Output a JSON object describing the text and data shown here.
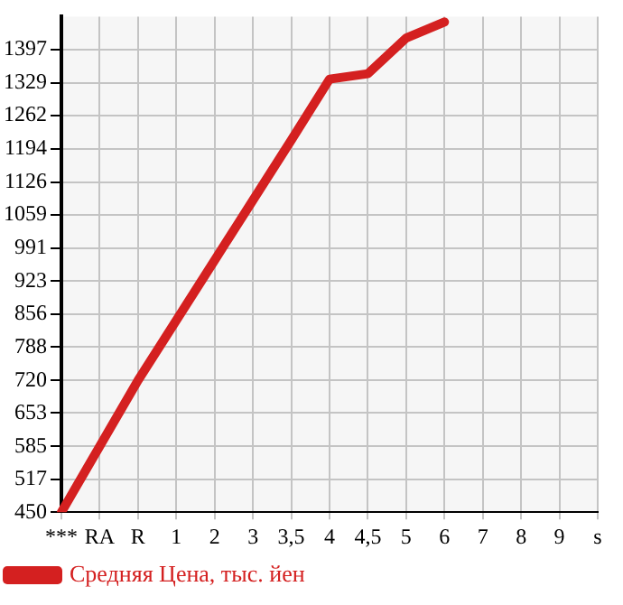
{
  "chart_data": {
    "type": "line",
    "categories": [
      "***",
      "RA",
      "R",
      "1",
      "2",
      "3",
      "3,5",
      "4",
      "4,5",
      "5",
      "6",
      "7",
      "8",
      "9",
      "s"
    ],
    "series": [
      {
        "name": "Средняя Цена, тыс. йен",
        "color": "#d42020",
        "values": [
          450,
          585,
          720,
          843,
          966,
          1089,
          1212,
          1337,
          1348,
          1421,
          1454,
          null,
          null,
          null,
          null
        ]
      }
    ],
    "ylim": [
      450,
      1465
    ],
    "yticks": [
      450,
      517,
      585,
      653,
      720,
      788,
      856,
      923,
      991,
      1059,
      1126,
      1194,
      1262,
      1329,
      1397
    ],
    "grid": true,
    "legend": "bottom left",
    "marker": "none",
    "line_style": "solid"
  }
}
